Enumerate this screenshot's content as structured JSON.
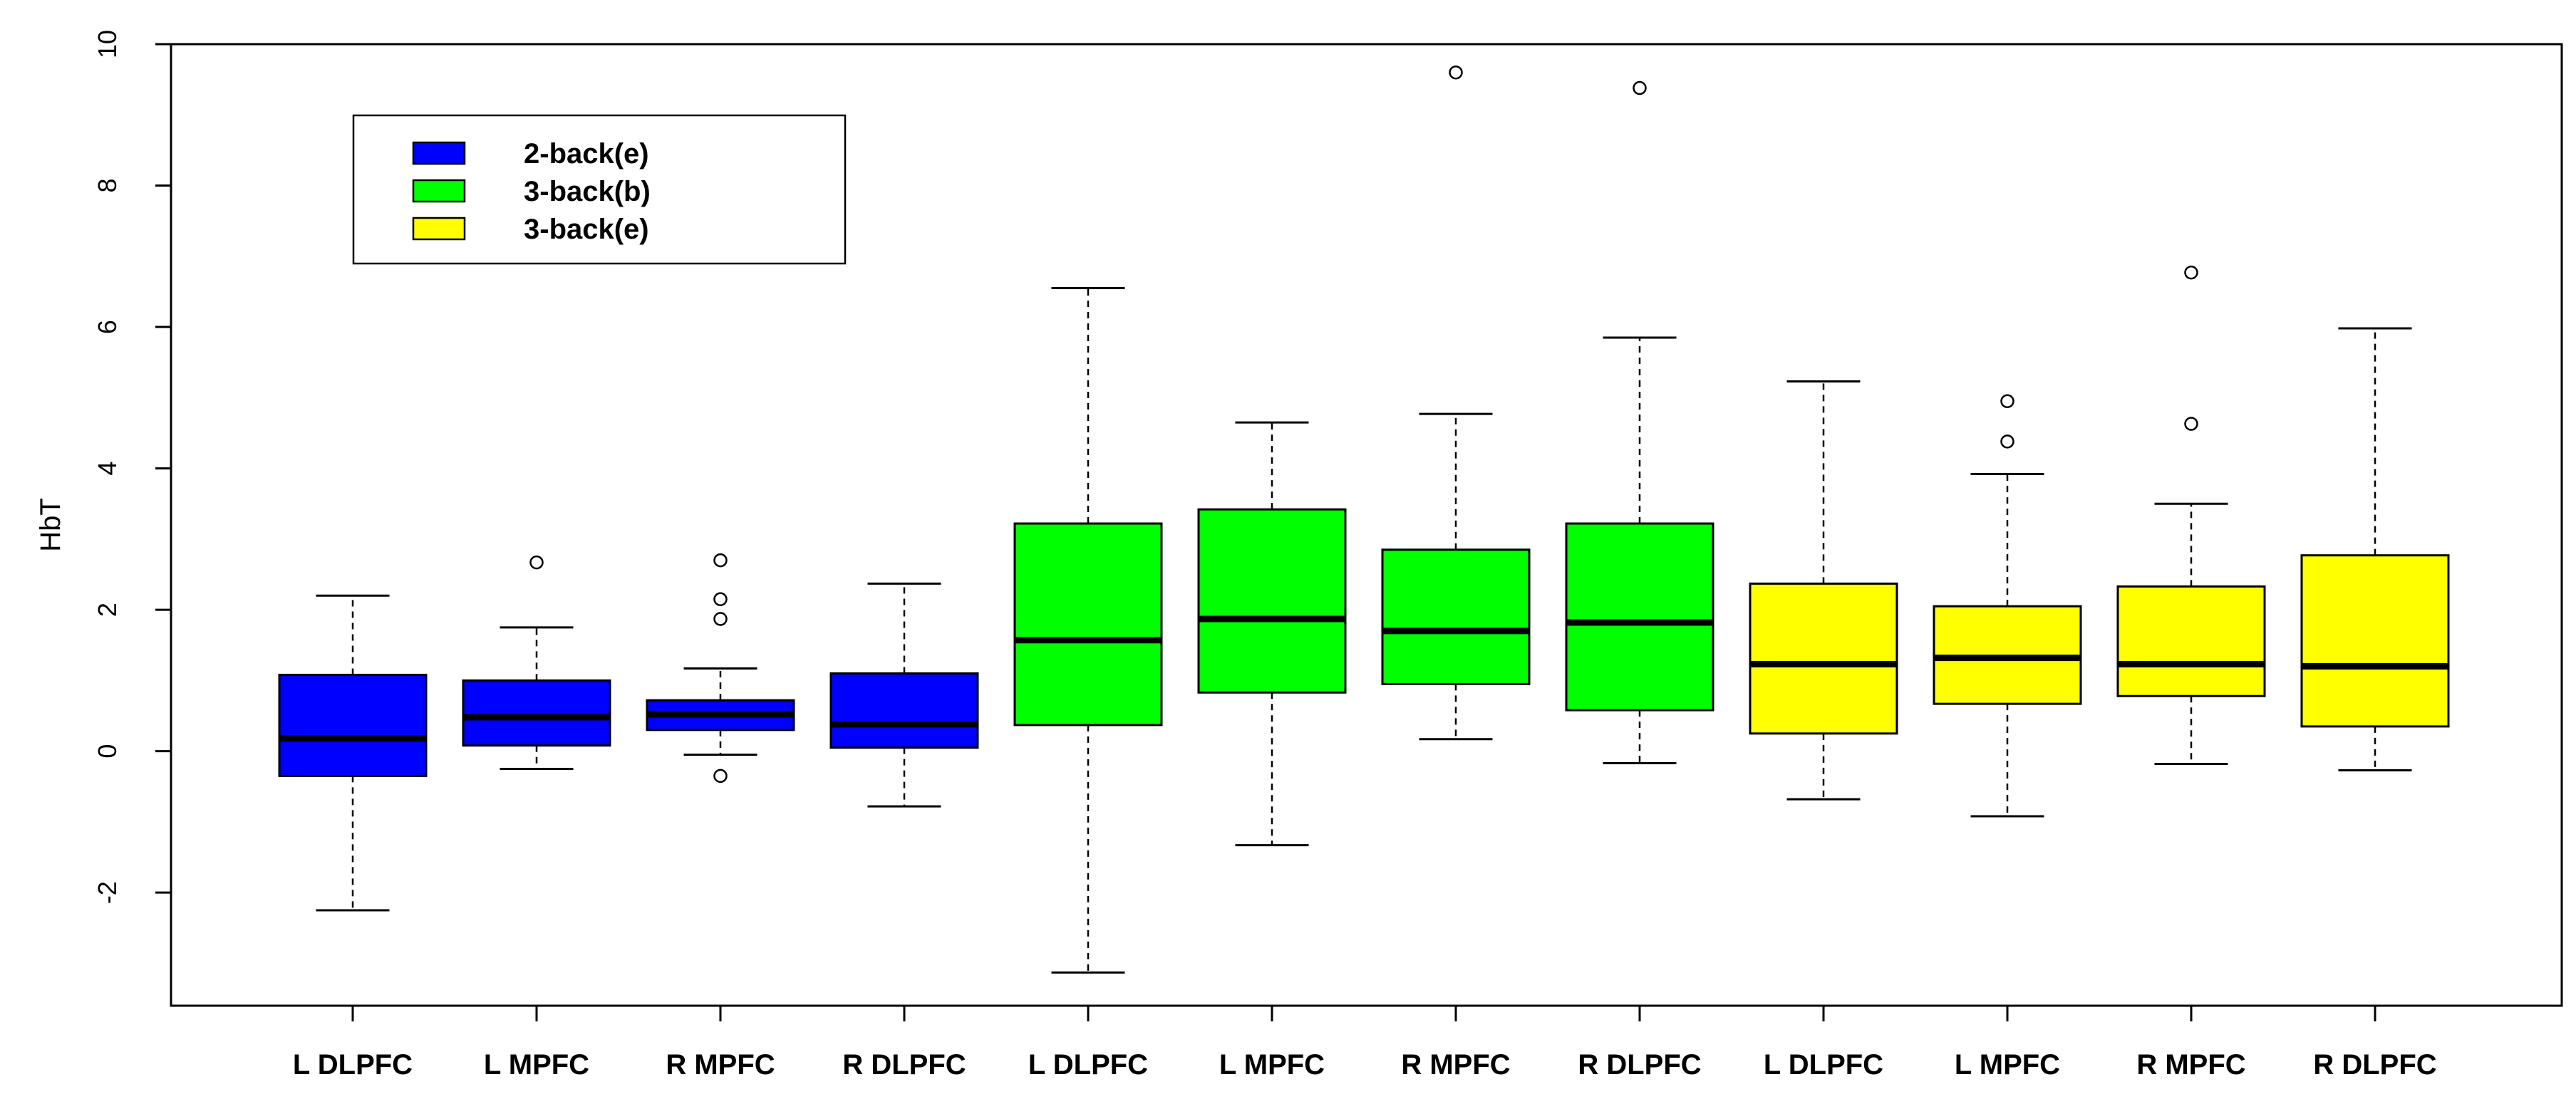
{
  "chart_data": {
    "type": "boxplot",
    "ylabel": "HbT",
    "ylim": [
      -3.6,
      10.0
    ],
    "y_ticks": [
      -2,
      0,
      2,
      4,
      6,
      8,
      10
    ],
    "categories": [
      "L DLPFC",
      "L MPFC",
      "R MPFC",
      "R DLPFC",
      "L DLPFC",
      "L MPFC",
      "R MPFC",
      "R DLPFC",
      "L DLPFC",
      "L MPFC",
      "R MPFC",
      "R DLPFC"
    ],
    "legend": {
      "placement": "top-left",
      "entries": [
        {
          "label": "2-back(e)",
          "color": "#0000ff"
        },
        {
          "label": "3-back(b)",
          "color": "#00ff00"
        },
        {
          "label": "3-back(e)",
          "color": "#ffff00"
        }
      ]
    },
    "series": [
      {
        "name": "2-back(e)",
        "color": "#0000ff",
        "boxes": [
          {
            "category": "L DLPFC",
            "whisker_low": -2.25,
            "q1": -0.35,
            "median": 0.18,
            "q3": 1.08,
            "whisker_high": 2.2,
            "outliers": []
          },
          {
            "category": "L MPFC",
            "whisker_low": -0.25,
            "q1": 0.08,
            "median": 0.48,
            "q3": 1.0,
            "whisker_high": 1.75,
            "outliers": [
              2.67
            ]
          },
          {
            "category": "R MPFC",
            "whisker_low": -0.05,
            "q1": 0.3,
            "median": 0.52,
            "q3": 0.72,
            "whisker_high": 1.17,
            "outliers": [
              1.87,
              2.15,
              2.7,
              -0.35
            ]
          },
          {
            "category": "R DLPFC",
            "whisker_low": -0.78,
            "q1": 0.05,
            "median": 0.38,
            "q3": 1.1,
            "whisker_high": 2.37,
            "outliers": []
          }
        ]
      },
      {
        "name": "3-back(b)",
        "color": "#00ff00",
        "boxes": [
          {
            "category": "L DLPFC",
            "whisker_low": -3.13,
            "q1": 0.37,
            "median": 1.57,
            "q3": 3.22,
            "whisker_high": 6.55,
            "outliers": []
          },
          {
            "category": "L MPFC",
            "whisker_low": -1.33,
            "q1": 0.83,
            "median": 1.87,
            "q3": 3.42,
            "whisker_high": 4.65,
            "outliers": []
          },
          {
            "category": "R MPFC",
            "whisker_low": 0.17,
            "q1": 0.95,
            "median": 1.7,
            "q3": 2.85,
            "whisker_high": 4.77,
            "outliers": [
              9.6
            ]
          },
          {
            "category": "R DLPFC",
            "whisker_low": -0.17,
            "q1": 0.58,
            "median": 1.82,
            "q3": 3.22,
            "whisker_high": 5.85,
            "outliers": [
              9.38
            ]
          }
        ]
      },
      {
        "name": "3-back(e)",
        "color": "#ffff00",
        "boxes": [
          {
            "category": "L DLPFC",
            "whisker_low": -0.68,
            "q1": 0.25,
            "median": 1.23,
            "q3": 2.37,
            "whisker_high": 5.23,
            "outliers": []
          },
          {
            "category": "L MPFC",
            "whisker_low": -0.92,
            "q1": 0.67,
            "median": 1.32,
            "q3": 2.05,
            "whisker_high": 3.92,
            "outliers": [
              4.38,
              4.95
            ]
          },
          {
            "category": "R MPFC",
            "whisker_low": -0.18,
            "q1": 0.78,
            "median": 1.23,
            "q3": 2.33,
            "whisker_high": 3.5,
            "outliers": [
              4.63,
              6.77
            ]
          },
          {
            "category": "R DLPFC",
            "whisker_low": -0.27,
            "q1": 0.35,
            "median": 1.2,
            "q3": 2.77,
            "whisker_high": 5.98,
            "outliers": []
          }
        ]
      }
    ]
  }
}
